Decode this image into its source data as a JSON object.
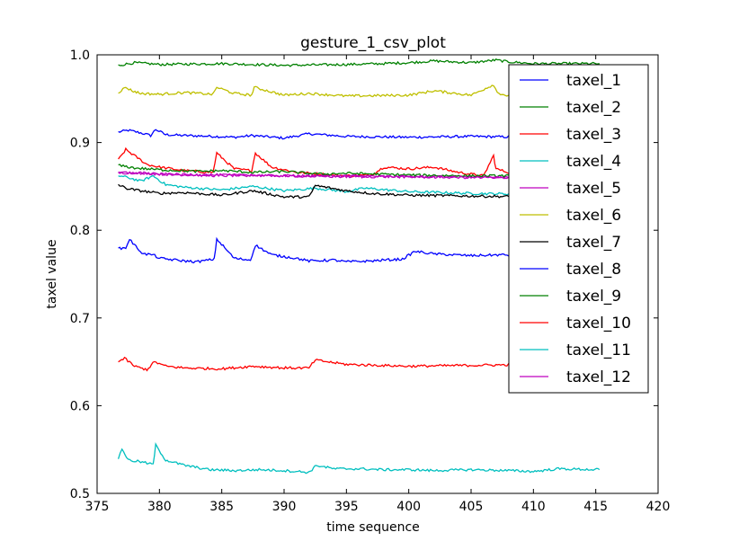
{
  "chart_data": {
    "type": "line",
    "title": "gesture_1_csv_plot",
    "xlabel": "time sequence",
    "ylabel": "taxel value",
    "xlim": [
      375,
      420
    ],
    "ylim": [
      0.5,
      1.0
    ],
    "xticks": [
      "375",
      "380",
      "385",
      "390",
      "395",
      "400",
      "405",
      "410",
      "415",
      "420"
    ],
    "yticks": [
      "0.5",
      "0.6",
      "0.7",
      "0.8",
      "0.9",
      "1.0"
    ],
    "grid": false,
    "legend_position": "top-right",
    "x_range": [
      376.7,
      415.3
    ],
    "series": [
      {
        "name": "taxel_1",
        "color": "#0000ff",
        "x": [
          376.7,
          377.5,
          378.5,
          379.3,
          379.7,
          380.5,
          382.0,
          384.5,
          386.0,
          387.5,
          390.0,
          392.0,
          395.0,
          400.0,
          405.0,
          410.0,
          415.3
        ],
        "y": [
          0.912,
          0.914,
          0.911,
          0.908,
          0.915,
          0.909,
          0.908,
          0.907,
          0.906,
          0.908,
          0.905,
          0.91,
          0.907,
          0.906,
          0.907,
          0.906,
          0.906
        ]
      },
      {
        "name": "taxel_2",
        "color": "#008000",
        "x": [
          376.7,
          378.0,
          380.0,
          385.0,
          390.0,
          395.0,
          398.0,
          400.0,
          402.0,
          405.0,
          407.0,
          408.0,
          410.0,
          415.3
        ],
        "y": [
          0.988,
          0.991,
          0.989,
          0.99,
          0.988,
          0.989,
          0.99,
          0.991,
          0.993,
          0.991,
          0.994,
          0.992,
          0.99,
          0.99
        ]
      },
      {
        "name": "taxel_3",
        "color": "#ff0000",
        "x": [
          376.7,
          377.3,
          378.0,
          379.0,
          380.0,
          382.0,
          384.3,
          384.6,
          386.0,
          387.4,
          387.7,
          389.0,
          391.0,
          393.0,
          395.0,
          397.0,
          398.0,
          400.0,
          402.0,
          404.0,
          406.0,
          406.8,
          407.0,
          408.0,
          410.0,
          415.3
        ],
        "y": [
          0.88,
          0.892,
          0.885,
          0.875,
          0.872,
          0.868,
          0.866,
          0.888,
          0.87,
          0.868,
          0.888,
          0.872,
          0.866,
          0.864,
          0.862,
          0.863,
          0.872,
          0.87,
          0.872,
          0.866,
          0.862,
          0.885,
          0.87,
          0.866,
          0.864,
          0.862
        ]
      },
      {
        "name": "taxel_4",
        "color": "#00bfbf",
        "x": [
          376.7,
          377.5,
          378.5,
          379.5,
          380.5,
          382.0,
          385.0,
          387.5,
          390.0,
          392.5,
          395.0,
          396.5,
          400.0,
          405.0,
          410.0,
          415.3
        ],
        "y": [
          0.862,
          0.86,
          0.856,
          0.862,
          0.852,
          0.849,
          0.846,
          0.85,
          0.845,
          0.848,
          0.844,
          0.848,
          0.844,
          0.842,
          0.841,
          0.84
        ]
      },
      {
        "name": "taxel_5",
        "color": "#bf00bf",
        "x": [
          376.7,
          378.0,
          380.0,
          385.0,
          388.0,
          390.0,
          395.0,
          400.0,
          405.0,
          410.0,
          415.3
        ],
        "y": [
          0.865,
          0.866,
          0.864,
          0.862,
          0.863,
          0.862,
          0.862,
          0.861,
          0.861,
          0.86,
          0.86
        ]
      },
      {
        "name": "taxel_6",
        "color": "#bfbf00",
        "x": [
          376.7,
          377.3,
          377.8,
          378.5,
          380.0,
          382.0,
          384.3,
          384.6,
          386.0,
          387.4,
          387.6,
          390.0,
          392.0,
          395.0,
          400.0,
          402.0,
          405.0,
          406.8,
          407.1,
          408.0,
          410.0,
          415.3
        ],
        "y": [
          0.957,
          0.963,
          0.959,
          0.956,
          0.955,
          0.957,
          0.955,
          0.963,
          0.956,
          0.954,
          0.963,
          0.954,
          0.956,
          0.953,
          0.954,
          0.959,
          0.954,
          0.966,
          0.957,
          0.953,
          0.953,
          0.952
        ]
      },
      {
        "name": "taxel_7",
        "color": "#000000",
        "x": [
          376.7,
          377.3,
          378.0,
          379.0,
          380.0,
          382.0,
          385.0,
          387.5,
          390.0,
          392.0,
          392.5,
          395.0,
          397.0,
          400.0,
          405.0,
          410.0,
          415.3
        ],
        "y": [
          0.852,
          0.848,
          0.846,
          0.844,
          0.842,
          0.843,
          0.84,
          0.845,
          0.838,
          0.838,
          0.851,
          0.845,
          0.842,
          0.84,
          0.839,
          0.838,
          0.837
        ]
      },
      {
        "name": "taxel_8",
        "color": "#0000ff",
        "x": [
          376.7,
          377.3,
          377.6,
          378.0,
          378.7,
          379.5,
          380.0,
          382.0,
          383.0,
          384.4,
          384.6,
          386.0,
          387.3,
          387.7,
          389.0,
          391.0,
          392.0,
          394.0,
          395.0,
          397.0,
          398.0,
          399.5,
          400.5,
          402.0,
          405.0,
          407.5,
          408.5,
          410.0,
          415.3
        ],
        "y": [
          0.779,
          0.78,
          0.79,
          0.783,
          0.773,
          0.772,
          0.768,
          0.765,
          0.764,
          0.767,
          0.79,
          0.768,
          0.766,
          0.783,
          0.772,
          0.768,
          0.765,
          0.766,
          0.764,
          0.765,
          0.766,
          0.767,
          0.776,
          0.773,
          0.771,
          0.772,
          0.771,
          0.771,
          0.77
        ]
      },
      {
        "name": "taxel_9",
        "color": "#008000",
        "x": [
          376.7,
          378.0,
          380.0,
          383.0,
          385.0,
          387.5,
          390.0,
          393.0,
          395.0,
          400.0,
          405.0,
          410.0,
          415.3
        ],
        "y": [
          0.874,
          0.871,
          0.869,
          0.867,
          0.868,
          0.866,
          0.867,
          0.864,
          0.865,
          0.863,
          0.862,
          0.862,
          0.862
        ]
      },
      {
        "name": "taxel_10",
        "color": "#ff0000",
        "x": [
          376.7,
          377.2,
          378.0,
          379.0,
          379.6,
          380.5,
          382.0,
          385.0,
          387.5,
          390.0,
          392.0,
          392.5,
          395.0,
          400.0,
          405.0,
          410.0,
          415.3
        ],
        "y": [
          0.65,
          0.654,
          0.645,
          0.641,
          0.65,
          0.645,
          0.643,
          0.642,
          0.645,
          0.643,
          0.643,
          0.652,
          0.647,
          0.645,
          0.646,
          0.647,
          0.646
        ]
      },
      {
        "name": "taxel_11",
        "color": "#00bfbf",
        "x": [
          376.7,
          377.0,
          377.5,
          378.5,
          379.5,
          379.7,
          380.5,
          382.0,
          384.0,
          386.0,
          388.0,
          390.0,
          392.0,
          392.6,
          394.0,
          396.0,
          398.0,
          400.0,
          402.0,
          405.0,
          408.0,
          410.0,
          412.0,
          415.3
        ],
        "y": [
          0.54,
          0.551,
          0.538,
          0.536,
          0.533,
          0.555,
          0.538,
          0.532,
          0.527,
          0.526,
          0.527,
          0.526,
          0.524,
          0.532,
          0.528,
          0.528,
          0.527,
          0.527,
          0.526,
          0.527,
          0.526,
          0.525,
          0.528,
          0.527
        ]
      },
      {
        "name": "taxel_12",
        "color": "#bf00bf",
        "x": [
          376.7,
          378.0,
          380.0,
          385.0,
          390.0,
          395.0,
          400.0,
          405.0,
          410.0,
          415.3
        ],
        "y": [
          0.866,
          0.865,
          0.864,
          0.863,
          0.862,
          0.861,
          0.861,
          0.86,
          0.86,
          0.859
        ]
      }
    ]
  }
}
